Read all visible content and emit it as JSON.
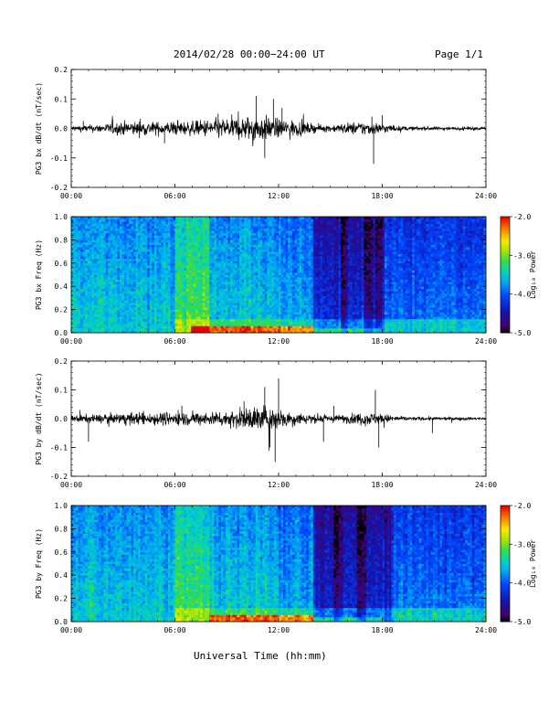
{
  "header": {
    "title": "2014/02/28  00:00−24:00 UT",
    "page_label": "Page 1/1"
  },
  "footer": {
    "xlabel": "Universal Time (hh:mm)"
  },
  "chart_data": [
    {
      "type": "line",
      "ylabel": "PG3 bx dB/dt (nT/sec)",
      "xlim": [
        0,
        24
      ],
      "ylim": [
        -0.2,
        0.2
      ],
      "xticks": [
        "00:00",
        "06:00",
        "12:00",
        "18:00",
        "24:00"
      ],
      "yticks": [
        "-0.2",
        "-0.1",
        "0.0",
        "0.1",
        "0.2"
      ],
      "envelope": {
        "x": [
          0,
          1,
          2,
          3,
          4,
          5,
          6,
          7,
          8,
          9,
          10,
          10.5,
          11,
          11.5,
          12,
          13,
          14,
          15,
          16,
          17,
          18,
          19,
          20,
          21,
          22,
          23,
          24
        ],
        "amp": [
          0.012,
          0.015,
          0.02,
          0.03,
          0.03,
          0.028,
          0.03,
          0.03,
          0.04,
          0.045,
          0.05,
          0.06,
          0.055,
          0.05,
          0.04,
          0.035,
          0.018,
          0.014,
          0.025,
          0.03,
          0.022,
          0.01,
          0.008,
          0.008,
          0.007,
          0.007,
          0.006
        ]
      },
      "spikes": [
        {
          "x": 0.7,
          "y": 0.025
        },
        {
          "x": 2.4,
          "y": 0.03
        },
        {
          "x": 4.0,
          "y": 0.032
        },
        {
          "x": 5.4,
          "y": -0.05
        },
        {
          "x": 8.5,
          "y": 0.05
        },
        {
          "x": 10.7,
          "y": 0.11
        },
        {
          "x": 11.2,
          "y": -0.1
        },
        {
          "x": 11.7,
          "y": 0.1
        },
        {
          "x": 12.2,
          "y": 0.07
        },
        {
          "x": 17.4,
          "y": 0.04
        },
        {
          "x": 18.0,
          "y": 0.045
        },
        {
          "x": 17.5,
          "y": -0.12
        }
      ]
    },
    {
      "type": "heatmap",
      "ylabel": "PG3 bx Freq (Hz)",
      "xlim": [
        0,
        24
      ],
      "ylim": [
        0,
        1
      ],
      "xticks": [
        "00:00",
        "06:00",
        "12:00",
        "18:00",
        "24:00"
      ],
      "yticks": [
        "0.0",
        "0.2",
        "0.4",
        "0.6",
        "0.8",
        "1.0"
      ],
      "colorbar": {
        "label": "Log₁₀ Power",
        "range": [
          -5.0,
          -2.0
        ],
        "ticks": [
          "-2.0",
          "-3.0",
          "-4.0",
          "-5.0"
        ]
      },
      "features": {
        "quiet_start_hour": 14.0,
        "active_band_hours": [
          6,
          8
        ],
        "active_low_freq_hours": [
          7,
          14
        ],
        "quiet_columns_hours": [
          15.8,
          17.2,
          17.9
        ]
      }
    },
    {
      "type": "line",
      "ylabel": "PG3 by dB/dt (nT/sec)",
      "xlim": [
        0,
        24
      ],
      "ylim": [
        -0.2,
        0.2
      ],
      "xticks": [
        "00:00",
        "06:00",
        "12:00",
        "18:00",
        "24:00"
      ],
      "yticks": [
        "-0.2",
        "-0.1",
        "0.0",
        "0.1",
        "0.2"
      ],
      "envelope": {
        "x": [
          0,
          1,
          2,
          3,
          4,
          5,
          6,
          7,
          8,
          9,
          10,
          10.5,
          11,
          11.5,
          12,
          13,
          14,
          15,
          16,
          17,
          18,
          19,
          20,
          21,
          22,
          23,
          24
        ],
        "amp": [
          0.015,
          0.018,
          0.02,
          0.025,
          0.028,
          0.028,
          0.03,
          0.028,
          0.03,
          0.035,
          0.045,
          0.055,
          0.06,
          0.055,
          0.045,
          0.03,
          0.02,
          0.015,
          0.02,
          0.03,
          0.022,
          0.01,
          0.008,
          0.008,
          0.007,
          0.007,
          0.006
        ]
      },
      "spikes": [
        {
          "x": 0.5,
          "y": 0.03
        },
        {
          "x": 1.0,
          "y": -0.08
        },
        {
          "x": 6.4,
          "y": 0.045
        },
        {
          "x": 10.0,
          "y": 0.06
        },
        {
          "x": 11.2,
          "y": 0.11
        },
        {
          "x": 11.5,
          "y": -0.1
        },
        {
          "x": 11.8,
          "y": -0.15
        },
        {
          "x": 12.0,
          "y": 0.14
        },
        {
          "x": 15.2,
          "y": 0.045
        },
        {
          "x": 17.6,
          "y": 0.1
        },
        {
          "x": 17.8,
          "y": -0.1
        },
        {
          "x": 14.6,
          "y": -0.08
        },
        {
          "x": 20.9,
          "y": -0.05
        }
      ]
    },
    {
      "type": "heatmap",
      "ylabel": "PG3 by Freq (Hz)",
      "xlim": [
        0,
        24
      ],
      "ylim": [
        0,
        1
      ],
      "xticks": [
        "00:00",
        "06:00",
        "12:00",
        "18:00",
        "24:00"
      ],
      "yticks": [
        "0.0",
        "0.2",
        "0.4",
        "0.6",
        "0.8",
        "1.0"
      ],
      "colorbar": {
        "label": "Log₁₀ Power",
        "range": [
          -5.0,
          -2.0
        ],
        "ticks": [
          "-2.0",
          "-3.0",
          "-4.0",
          "-5.0"
        ]
      },
      "features": {
        "quiet_start_hour": 14.0,
        "active_band_hours": [
          6,
          8
        ],
        "active_low_freq_hours": [
          8,
          14
        ],
        "quiet_columns_hours": [
          15.5,
          16.8,
          18.3
        ]
      }
    }
  ]
}
